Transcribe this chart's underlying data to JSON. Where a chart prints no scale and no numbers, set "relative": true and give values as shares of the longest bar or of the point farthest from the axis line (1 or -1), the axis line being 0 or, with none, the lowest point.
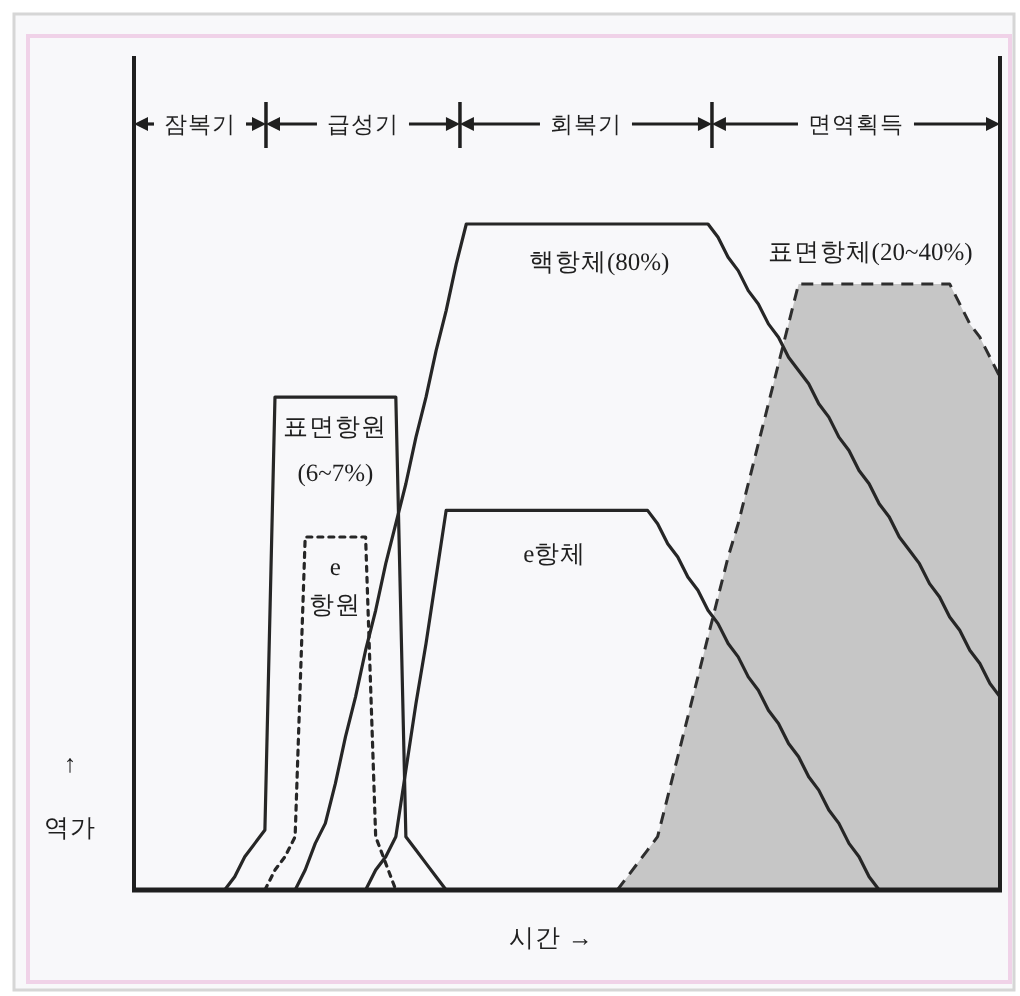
{
  "chart_data": {
    "type": "line",
    "relative": true,
    "xlabel": "시간 →",
    "ylabel": "↑\n역가",
    "annotations": [
      "잠복기",
      "급성기",
      "회복기",
      "면역획득"
    ],
    "categories": [
      null,
      null,
      null,
      null,
      null,
      null,
      null,
      null,
      null,
      null,
      null,
      null,
      null,
      null,
      null,
      null,
      null,
      null,
      null,
      null,
      null,
      null,
      null,
      null,
      null,
      null,
      null,
      null,
      null,
      null,
      null,
      null,
      null,
      null,
      null,
      null,
      null,
      null,
      null,
      null,
      null,
      null,
      null,
      null,
      null,
      null,
      null,
      null,
      null,
      null,
      null,
      null,
      null,
      null,
      null,
      null,
      null,
      null,
      null,
      null,
      null,
      null,
      null,
      null,
      null,
      null,
      null,
      null,
      null,
      null,
      null,
      null,
      null,
      null,
      null,
      null,
      null,
      null,
      null,
      null,
      null,
      null,
      null,
      null,
      null,
      null,
      null
    ],
    "series": [
      {
        "name": "표면항원\n(6~7%)",
        "color": "#262626",
        "values": [
          null,
          null,
          null,
          null,
          null,
          null,
          null,
          null,
          null,
          0,
          0.02,
          0.05,
          0.07,
          0.09,
          0.74,
          0.74,
          0.74,
          0.74,
          0.74,
          0.74,
          0.74,
          0.74,
          0.74,
          0.74,
          0.74,
          0.74,
          0.74,
          0.08,
          0.06,
          0.04,
          0.02,
          0,
          null,
          null,
          null,
          null,
          null,
          null,
          null,
          null,
          null,
          null,
          null,
          null,
          null,
          null,
          null,
          null,
          null,
          null,
          null,
          null,
          null,
          null,
          null,
          null,
          null,
          null,
          null,
          null,
          null,
          null,
          null,
          null,
          null,
          null,
          null,
          null,
          null,
          null,
          null,
          null,
          null,
          null,
          null,
          null,
          null,
          null,
          null,
          null,
          null,
          null,
          null,
          null,
          null,
          null,
          null
        ]
      },
      {
        "name": "e\n항원",
        "color": "#262626",
        "line_style": "dotted",
        "values": [
          null,
          null,
          null,
          null,
          null,
          null,
          null,
          null,
          null,
          null,
          null,
          null,
          null,
          0,
          0.03,
          0.05,
          0.08,
          0.53,
          0.53,
          0.53,
          0.53,
          0.53,
          0.53,
          0.53,
          0.08,
          0.04,
          0,
          null,
          null,
          null,
          null,
          null,
          null,
          null,
          null,
          null,
          null,
          null,
          null,
          null,
          null,
          null,
          null,
          null,
          null,
          null,
          null,
          null,
          null,
          null,
          null,
          null,
          null,
          null,
          null,
          null,
          null,
          null,
          null,
          null,
          null,
          null,
          null,
          null,
          null,
          null,
          null,
          null,
          null,
          null,
          null,
          null,
          null,
          null,
          null,
          null,
          null,
          null,
          null,
          null,
          null,
          null,
          null,
          null,
          null,
          null,
          null
        ]
      },
      {
        "name": "핵항체(80%)",
        "color": "#262626",
        "values": [
          null,
          null,
          null,
          null,
          null,
          null,
          null,
          null,
          null,
          null,
          null,
          null,
          null,
          null,
          null,
          null,
          0,
          0.03,
          0.07,
          0.1,
          0.16,
          0.23,
          0.29,
          0.36,
          0.42,
          0.49,
          0.55,
          0.61,
          0.68,
          0.74,
          0.81,
          0.87,
          0.94,
          1,
          1,
          1,
          1,
          1,
          1,
          1,
          1,
          1,
          1,
          1,
          1,
          1,
          1,
          1,
          1,
          1,
          1,
          1,
          1,
          1,
          1,
          1,
          1,
          1,
          0.98,
          0.95,
          0.93,
          0.9,
          0.88,
          0.85,
          0.83,
          0.8,
          0.78,
          0.76,
          0.73,
          0.71,
          0.68,
          0.66,
          0.63,
          0.61,
          0.58,
          0.56,
          0.53,
          0.51,
          0.49,
          0.46,
          0.44,
          0.41,
          0.39,
          0.36,
          0.34,
          0.31,
          0.29
        ]
      },
      {
        "name": "e항체",
        "color": "#262626",
        "values": [
          null,
          null,
          null,
          null,
          null,
          null,
          null,
          null,
          null,
          null,
          null,
          null,
          null,
          null,
          null,
          null,
          null,
          null,
          null,
          null,
          null,
          null,
          null,
          0,
          0.03,
          0.05,
          0.08,
          0.18,
          0.28,
          0.37,
          0.47,
          0.57,
          0.57,
          0.57,
          0.57,
          0.57,
          0.57,
          0.57,
          0.57,
          0.57,
          0.57,
          0.57,
          0.57,
          0.57,
          0.57,
          0.57,
          0.57,
          0.57,
          0.57,
          0.57,
          0.57,
          0.57,
          0.55,
          0.52,
          0.5,
          0.47,
          0.45,
          0.42,
          0.4,
          0.37,
          0.35,
          0.32,
          0.3,
          0.27,
          0.25,
          0.22,
          0.2,
          0.17,
          0.15,
          0.12,
          0.1,
          0.07,
          0.05,
          0.02,
          0,
          null,
          null,
          null,
          null,
          null,
          null,
          null,
          null,
          null,
          null,
          null,
          null
        ]
      },
      {
        "name": "표면항체(20~40%)",
        "type": "area",
        "color": "#c6c6c6",
        "line_style": "dashed",
        "values": [
          null,
          null,
          null,
          null,
          null,
          null,
          null,
          null,
          null,
          null,
          null,
          null,
          null,
          null,
          null,
          null,
          null,
          null,
          null,
          null,
          null,
          null,
          null,
          null,
          null,
          null,
          null,
          null,
          null,
          null,
          null,
          null,
          null,
          null,
          null,
          null,
          null,
          null,
          null,
          null,
          null,
          null,
          null,
          null,
          null,
          null,
          null,
          null,
          0,
          0.02,
          0.04,
          0.06,
          0.08,
          0.14,
          0.2,
          0.26,
          0.32,
          0.38,
          0.44,
          0.5,
          0.55,
          0.61,
          0.67,
          0.73,
          0.79,
          0.85,
          0.91,
          0.91,
          0.91,
          0.91,
          0.91,
          0.91,
          0.91,
          0.91,
          0.91,
          0.91,
          0.91,
          0.91,
          0.91,
          0.91,
          0.91,
          0.91,
          0.88,
          0.85,
          0.83,
          0.8,
          0.77
        ]
      }
    ]
  }
}
